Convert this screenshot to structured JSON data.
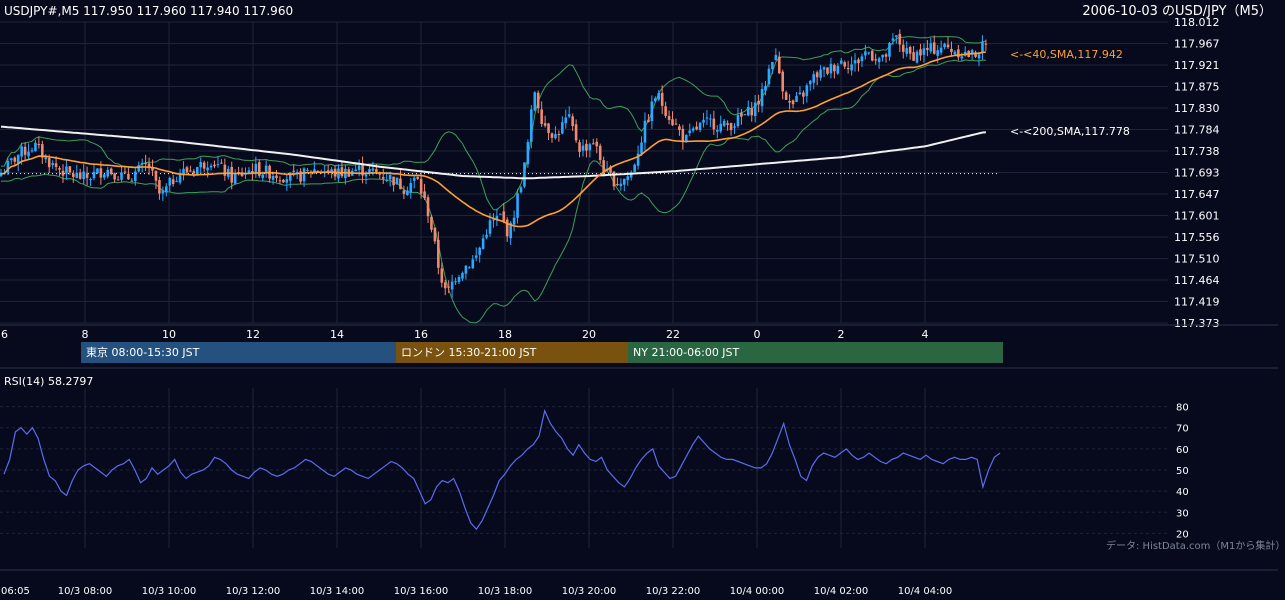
{
  "header": {
    "symbol_info": "USDJPY#,M5 117.950 117.960 117.940 117.960",
    "chart_title": "2006-10-03 のUSD/JPY（M5）"
  },
  "sessions": [
    {
      "label": "東京 08:00-15:30 JST",
      "color": "#25517f"
    },
    {
      "label": "ロンドン 15:30-21:00 JST",
      "color": "#7a5210"
    },
    {
      "label": "NY 21:00-06:00 JST",
      "color": "#2a6641"
    }
  ],
  "annotations": {
    "sma40": "<-<40,SMA,117.942",
    "sma200": "<-<200,SMA,117.778",
    "rsi_label": "RSI(14) 58.2797",
    "source": "データ: HistData.com（M1から集計）"
  },
  "colors": {
    "background": "#070a1d",
    "bull": "#29a9ff",
    "bear": "#f08a6e",
    "sma40": "#ffa033",
    "sma200": "#f0f0f0",
    "bollinger": "#3e9e5a",
    "rsi": "#5d6bf0",
    "grid": "#1f2438"
  },
  "chart_data": [
    {
      "type": "candlestick",
      "title": "2006-10-03 のUSD/JPY（M5）",
      "x_tick_labels": [
        "6",
        "8",
        "10",
        "12",
        "14",
        "16",
        "18",
        "20",
        "22",
        "0",
        "2",
        "4"
      ],
      "y_tick_labels": [
        "118.012",
        "117.967",
        "117.921",
        "117.875",
        "117.830",
        "117.784",
        "117.738",
        "117.693",
        "117.647",
        "117.601",
        "117.556",
        "117.510",
        "117.464",
        "117.419",
        "117.373"
      ],
      "ylim": [
        117.373,
        118.012
      ],
      "current_price": 117.96,
      "reference_price": 117.69,
      "price_path": [
        [
          6.0,
          117.69
        ],
        [
          6.4,
          117.73
        ],
        [
          6.8,
          117.75
        ],
        [
          7.2,
          117.71
        ],
        [
          7.6,
          117.69
        ],
        [
          8.0,
          117.68
        ],
        [
          8.5,
          117.7
        ],
        [
          9.0,
          117.68
        ],
        [
          9.5,
          117.71
        ],
        [
          9.8,
          117.64
        ],
        [
          10.2,
          117.69
        ],
        [
          10.6,
          117.7
        ],
        [
          11.0,
          117.72
        ],
        [
          11.5,
          117.68
        ],
        [
          12.0,
          117.7
        ],
        [
          12.5,
          117.69
        ],
        [
          13.0,
          117.68
        ],
        [
          13.5,
          117.7
        ],
        [
          14.0,
          117.69
        ],
        [
          14.5,
          117.7
        ],
        [
          15.0,
          117.69
        ],
        [
          15.3,
          117.68
        ],
        [
          15.6,
          117.66
        ],
        [
          15.9,
          117.68
        ],
        [
          16.2,
          117.6
        ],
        [
          16.4,
          117.5
        ],
        [
          16.6,
          117.43
        ],
        [
          16.8,
          117.47
        ],
        [
          17.0,
          117.49
        ],
        [
          17.3,
          117.51
        ],
        [
          17.6,
          117.58
        ],
        [
          17.9,
          117.6
        ],
        [
          18.1,
          117.56
        ],
        [
          18.3,
          117.64
        ],
        [
          18.5,
          117.72
        ],
        [
          18.7,
          117.87
        ],
        [
          18.9,
          117.8
        ],
        [
          19.2,
          117.77
        ],
        [
          19.5,
          117.81
        ],
        [
          19.8,
          117.74
        ],
        [
          20.1,
          117.76
        ],
        [
          20.4,
          117.69
        ],
        [
          20.7,
          117.67
        ],
        [
          21.0,
          117.69
        ],
        [
          21.3,
          117.78
        ],
        [
          21.6,
          117.86
        ],
        [
          21.8,
          117.83
        ],
        [
          22.0,
          117.8
        ],
        [
          22.3,
          117.76
        ],
        [
          22.6,
          117.79
        ],
        [
          22.9,
          117.8
        ],
        [
          23.2,
          117.79
        ],
        [
          23.5,
          117.8
        ],
        [
          23.8,
          117.82
        ],
        [
          24.1,
          117.85
        ],
        [
          24.4,
          117.95
        ],
        [
          24.6,
          117.88
        ],
        [
          24.8,
          117.83
        ],
        [
          25.1,
          117.86
        ],
        [
          25.4,
          117.9
        ],
        [
          25.7,
          117.91
        ],
        [
          26.0,
          117.93
        ],
        [
          26.3,
          117.92
        ],
        [
          26.6,
          117.95
        ],
        [
          27.0,
          117.93
        ],
        [
          27.3,
          117.98
        ],
        [
          27.6,
          117.94
        ],
        [
          28.0,
          117.95
        ],
        [
          28.4,
          117.96
        ],
        [
          28.8,
          117.95
        ],
        [
          29.1,
          117.94
        ],
        [
          29.4,
          117.96
        ]
      ]
    },
    {
      "type": "line",
      "title": "RSI(14) 58.2797",
      "y_tick_labels": [
        "80",
        "70",
        "60",
        "50",
        "40",
        "30",
        "20"
      ],
      "ylim": [
        15,
        85
      ],
      "x_tick_labels": [
        "06:05",
        "10/3 08:00",
        "10/3 10:00",
        "10/3 12:00",
        "10/3 14:00",
        "10/3 16:00",
        "10/3 18:00",
        "10/3 20:00",
        "10/3 22:00",
        "10/4 00:00",
        "10/4 02:00",
        "10/4 04:00"
      ],
      "series": [
        {
          "values": [
            48,
            55,
            68,
            70,
            67,
            70,
            65,
            55,
            47,
            45,
            40,
            38,
            45,
            50,
            52,
            53,
            51,
            49,
            47,
            50,
            52,
            53,
            55,
            50,
            44,
            46,
            51,
            48,
            50,
            52,
            55,
            49,
            46,
            48,
            49,
            50,
            52,
            56,
            55,
            53,
            50,
            48,
            47,
            46,
            49,
            51,
            50,
            48,
            47,
            48,
            50,
            51,
            53,
            55,
            54,
            52,
            50,
            48,
            47,
            49,
            51,
            50,
            48,
            47,
            46,
            48,
            50,
            52,
            54,
            53,
            51,
            48,
            46,
            40,
            34,
            36,
            42,
            45,
            44,
            46,
            40,
            32,
            25,
            22,
            26,
            32,
            38,
            45,
            48,
            52,
            55,
            57,
            60,
            62,
            66,
            78,
            72,
            68,
            65,
            60,
            57,
            62,
            58,
            55,
            54,
            56,
            50,
            47,
            44,
            42,
            46,
            51,
            55,
            58,
            60,
            52,
            49,
            46,
            47,
            52,
            57,
            62,
            66,
            63,
            60,
            58,
            56,
            55,
            55,
            54,
            53,
            52,
            51,
            51,
            53,
            58,
            65,
            72,
            62,
            55,
            47,
            45,
            52,
            56,
            58,
            57,
            56,
            58,
            60,
            57,
            55,
            56,
            58,
            56,
            54,
            53,
            55,
            56,
            58,
            57,
            56,
            55,
            57,
            55,
            54,
            53,
            55,
            56,
            55,
            55,
            56,
            55,
            42,
            50,
            56,
            58
          ]
        }
      ]
    }
  ]
}
